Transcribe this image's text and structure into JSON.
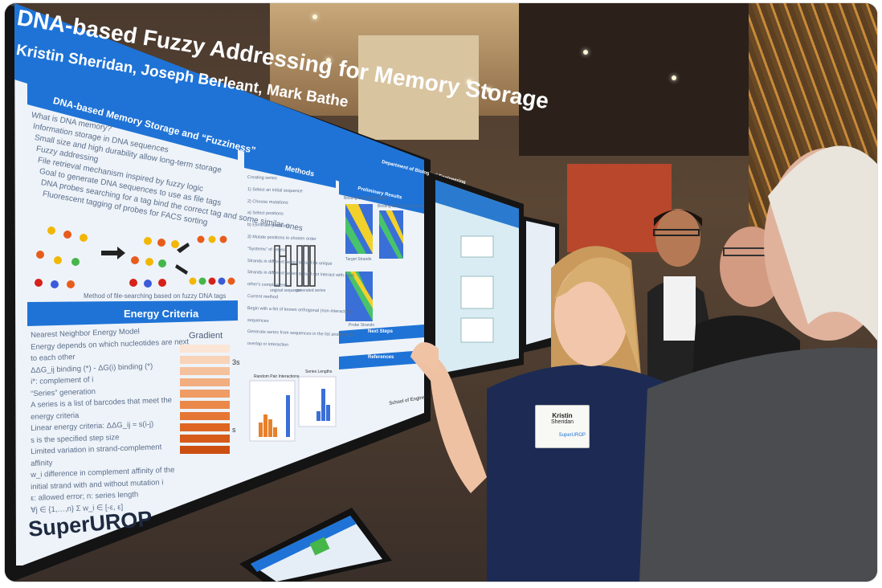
{
  "poster": {
    "title": "DNA-based Fuzzy Addressing for Memory Storage",
    "authors": "Kristin Sheridan, Joseph Berleant, Mark Bathe",
    "section1_title": "DNA-based Memory Storage and “Fuzziness”",
    "section1_lines": [
      "What is DNA memory?",
      "Information storage in DNA sequences",
      "Small size and high durability allow long-term storage",
      "Fuzzy addressing",
      "File retrieval mechanism inspired by fuzzy logic",
      "Goal to generate DNA sequences to use as file tags",
      "DNA probes searching for a tag bind the correct tag and some similar ones",
      "Fluorescent tagging of probes for FACS sorting"
    ],
    "caption": "Method of file-searching based on fuzzy DNA tags",
    "section2_title": "Energy Criteria",
    "section2_lines": [
      "Nearest Neighbor Energy Model",
      "Energy depends on which nucleotides are next",
      "to each other",
      "ΔΔG_ij binding (*) - ΔG(i) binding (*)",
      "i*: complement of i",
      "“Series” generation",
      "A series is a list of barcodes that meet the",
      "energy criteria",
      "Linear energy criteria: ΔΔG_ij ≈ s(i-j)",
      "s is the specified step size",
      "Limited variation in strand-complement",
      "affinity",
      "w_i difference in complement affinity of the",
      "initial strand with and without mutation i",
      "ε: allowed error; n: series length",
      "∀j ∈ {1,…,n} Σ w_i ∈ [-ε, ε]"
    ],
    "gradient_label": "Gradient",
    "gradient_top": "3s",
    "gradient_bottom": "s",
    "methods_title": "Methods",
    "methods_lines": [
      "Creating series",
      "1) Select an initial sequence",
      "2) Choose mutations",
      "a) Select positions",
      "b) Eliminate positions",
      "3) Mutate positions in chosen order",
      "“Systems” of series",
      "Strands in different series should be unique",
      "Strands in different series should not interact with each",
      "other's complements",
      "Current method",
      "Begin with a list of known orthogonal (non-interacting)",
      "sequences",
      "Generate series from sequences in the list and look for",
      "overlap or interaction"
    ],
    "methods_fig_labels": [
      "original sequence",
      "generated series"
    ],
    "dept": "Department of Biological Engineering",
    "prelim_title": "Preliminary Results",
    "prelim_labels": [
      "Binding Energy Gradient",
      "Binding Energy Crossover",
      "Target Strands",
      "Probe Strands"
    ],
    "next_steps_title": "Next Steps",
    "references_title": "References",
    "hist_labels": [
      "Random Pair Interactions",
      "Series Lengths"
    ],
    "logo": "SuperUROP",
    "school": "School of Engineering"
  },
  "badge": {
    "name": "Kristin",
    "surname": "Sheridan",
    "program": "SuperUROP"
  },
  "colors": {
    "poster_blue": "#1f73d6",
    "poster_bg": "#eef3f9",
    "gradient_dark": "#d65a1a",
    "gradient_light": "#f9dfcc"
  }
}
